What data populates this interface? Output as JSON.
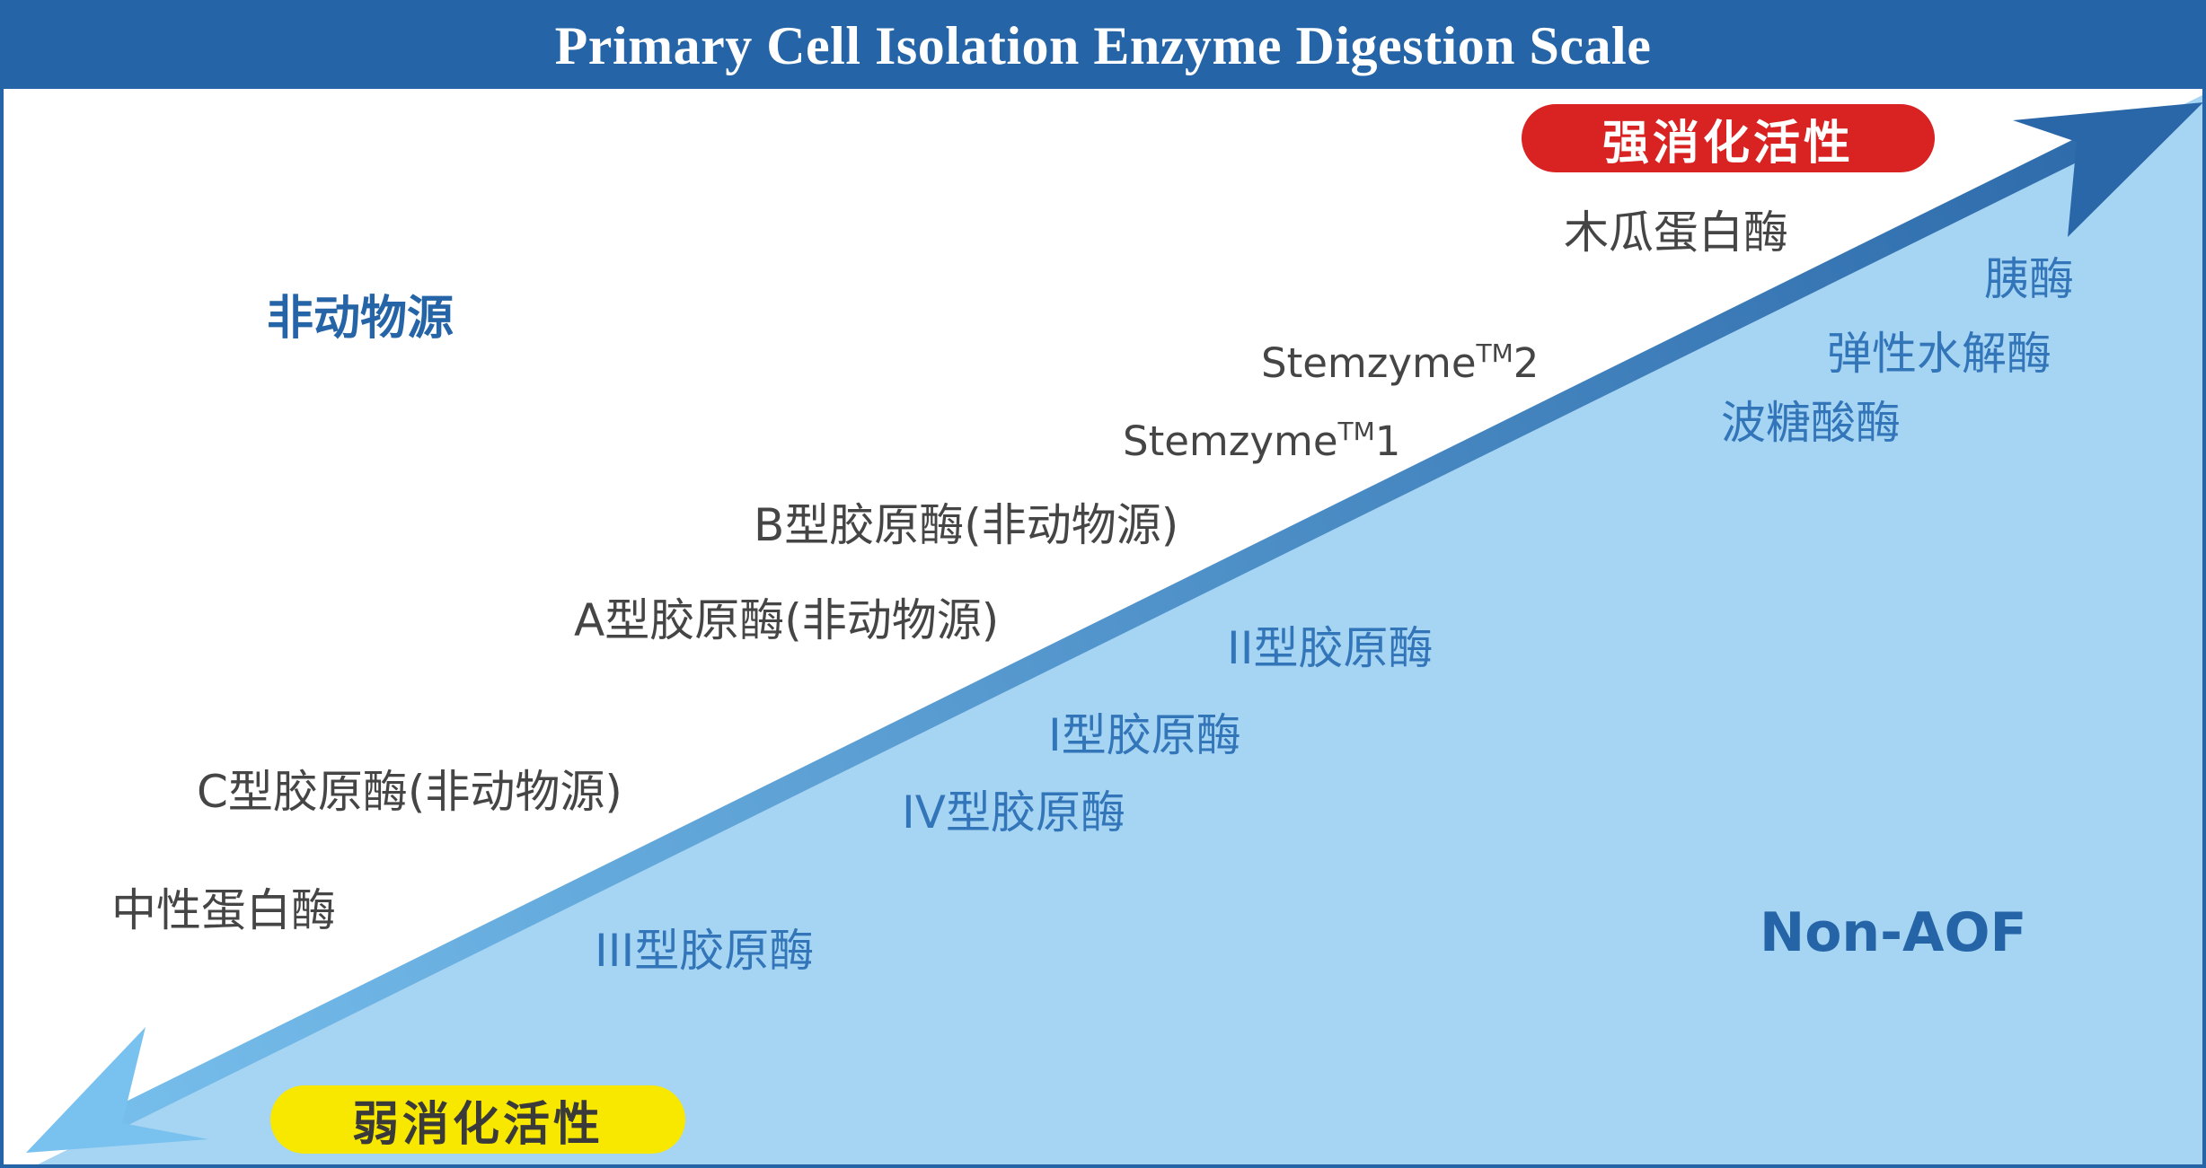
{
  "title": "Primary Cell Isolation Enzyme Digestion Scale",
  "colors": {
    "header": "#2564a6",
    "region_fill": "#a6d4f3",
    "arrow_start": "#79c1ee",
    "arrow_end": "#2a67a8",
    "strong_pill": "#d92222",
    "weak_pill": "#f8e800",
    "dark_text": "#454545",
    "blue_text": "#3275b8"
  },
  "scale": {
    "strong_label": "强消化活性",
    "weak_label": "弱消化活性"
  },
  "categories": {
    "non_animal": "非动物源",
    "non_aof": "Non-AOF"
  },
  "enzymes_upper": [
    {
      "text": "木瓜蛋白酶"
    },
    {
      "prefix": "Stemzyme",
      "tm": "TM",
      "suffix": "2"
    },
    {
      "prefix": "Stemzyme",
      "tm": "TM",
      "suffix": "1"
    },
    {
      "text": "B型胶原酶(非动物源)"
    },
    {
      "text": "A型胶原酶(非动物源)"
    },
    {
      "text": "C型胶原酶(非动物源)"
    },
    {
      "text": "中性蛋白酶"
    }
  ],
  "enzymes_lower": [
    {
      "text": "胰酶"
    },
    {
      "text": "弹性水解酶"
    },
    {
      "text": "波糖酸酶"
    },
    {
      "text": "II型胶原酶"
    },
    {
      "text": "I型胶原酶"
    },
    {
      "text": "IV型胶原酶"
    },
    {
      "text": "III型胶原酶"
    }
  ]
}
